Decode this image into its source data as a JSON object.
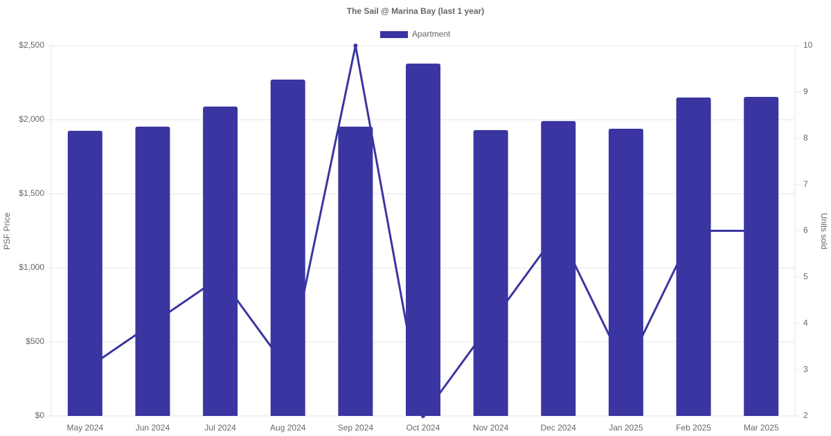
{
  "chart_data": {
    "type": "bar-line",
    "title": "The Sail @ Marina Bay (last 1 year)",
    "y_label": "PSF Price",
    "y2_label": "Units sold",
    "categories": [
      "May 2024",
      "Jun 2024",
      "Jul 2024",
      "Aug 2024",
      "Sep 2024",
      "Oct 2024",
      "Nov 2024",
      "Dec 2024",
      "Jan 2025",
      "Feb 2025",
      "Mar 2025"
    ],
    "series": [
      {
        "name": "Apartment",
        "type": "bar",
        "color": "#3a35a0",
        "values": [
          1925,
          1953,
          2089,
          2271,
          1953,
          2379,
          1930,
          1991,
          1939,
          2150,
          2154
        ]
      },
      {
        "type": "line",
        "axis": "y2",
        "color": "#3a35a0",
        "values": [
          3,
          4,
          5,
          3,
          10,
          2,
          4,
          6,
          3,
          6,
          6
        ]
      }
    ],
    "ylim": [
      0,
      2500
    ],
    "yticks": [
      {
        "value": 0,
        "label": "$0"
      },
      {
        "value": 500,
        "label": "$500"
      },
      {
        "value": 1000,
        "label": "$1,000"
      },
      {
        "value": 1500,
        "label": "$1,500"
      },
      {
        "value": 2000,
        "label": "$2,000"
      },
      {
        "value": 2500,
        "label": "$2,500"
      }
    ],
    "y2lim": [
      2,
      10
    ],
    "y2ticks": [
      2,
      3,
      4,
      5,
      6,
      7,
      8,
      9,
      10
    ],
    "grid": true,
    "legend": "top"
  }
}
